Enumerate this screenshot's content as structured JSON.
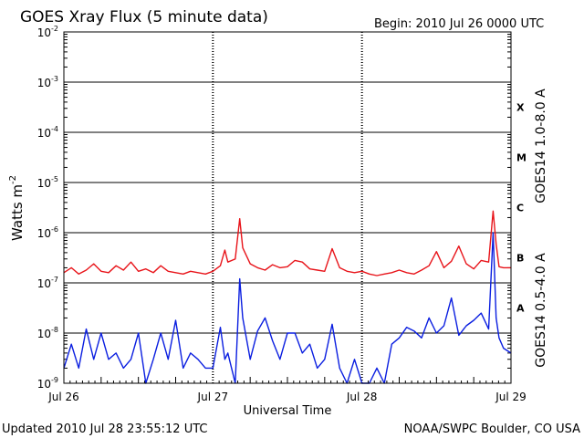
{
  "chart_data": {
    "type": "line",
    "title": "GOES Xray Flux (5 minute data)",
    "begin_label": "Begin:  2010 Jul 26 0000 UTC",
    "xlabel": "Universal Time",
    "ylabel_text": "Watts m",
    "ylabel_exp": "-2",
    "y_scale": "log",
    "ylim": [
      1e-09,
      0.01
    ],
    "grid": true,
    "y_ticks": [
      {
        "value": 0.01,
        "base": "10",
        "exp": "-2"
      },
      {
        "value": 0.001,
        "base": "10",
        "exp": "-3"
      },
      {
        "value": 0.0001,
        "base": "10",
        "exp": "-4"
      },
      {
        "value": 1e-05,
        "base": "10",
        "exp": "-5"
      },
      {
        "value": 1e-06,
        "base": "10",
        "exp": "-6"
      },
      {
        "value": 1e-07,
        "base": "10",
        "exp": "-7"
      },
      {
        "value": 1e-08,
        "base": "10",
        "exp": "-8"
      },
      {
        "value": 1e-09,
        "base": "10",
        "exp": "-9"
      }
    ],
    "x_ticks": [
      "Jul 26",
      "Jul 27",
      "Jul 28",
      "Jul 29"
    ],
    "flare_classes": [
      {
        "label": "X",
        "value": 0.000316
      },
      {
        "label": "M",
        "value": 3.16e-05
      },
      {
        "label": "C",
        "value": 3.16e-06
      },
      {
        "label": "B",
        "value": 3.16e-07
      },
      {
        "label": "A",
        "value": 3.16e-08
      }
    ],
    "series": [
      {
        "name": "GOES14 1.0-8.0 A",
        "color": "#e8141a",
        "x": [
          0,
          0.05,
          0.1,
          0.15,
          0.2,
          0.25,
          0.3,
          0.35,
          0.4,
          0.45,
          0.5,
          0.55,
          0.6,
          0.65,
          0.7,
          0.75,
          0.8,
          0.85,
          0.9,
          0.95,
          1.0,
          1.05,
          1.08,
          1.1,
          1.15,
          1.18,
          1.2,
          1.25,
          1.3,
          1.35,
          1.4,
          1.45,
          1.5,
          1.55,
          1.6,
          1.65,
          1.7,
          1.75,
          1.8,
          1.85,
          1.9,
          1.95,
          2.0,
          2.05,
          2.1,
          2.15,
          2.2,
          2.25,
          2.3,
          2.35,
          2.4,
          2.45,
          2.5,
          2.55,
          2.6,
          2.65,
          2.7,
          2.75,
          2.8,
          2.85,
          2.88,
          2.9,
          2.92,
          2.95,
          3.0
        ],
        "y": [
          1.6e-07,
          2e-07,
          1.5e-07,
          1.8e-07,
          2.4e-07,
          1.7e-07,
          1.6e-07,
          2.2e-07,
          1.8e-07,
          2.6e-07,
          1.7e-07,
          1.9e-07,
          1.6e-07,
          2.2e-07,
          1.7e-07,
          1.6e-07,
          1.5e-07,
          1.7e-07,
          1.6e-07,
          1.5e-07,
          1.7e-07,
          2.2e-07,
          4.5e-07,
          2.6e-07,
          3e-07,
          1.9e-06,
          5e-07,
          2.4e-07,
          2e-07,
          1.8e-07,
          2.3e-07,
          2e-07,
          2.1e-07,
          2.8e-07,
          2.6e-07,
          1.9e-07,
          1.8e-07,
          1.7e-07,
          4.8e-07,
          2e-07,
          1.7e-07,
          1.6e-07,
          1.7e-07,
          1.5e-07,
          1.4e-07,
          1.5e-07,
          1.6e-07,
          1.8e-07,
          1.6e-07,
          1.5e-07,
          1.8e-07,
          2.2e-07,
          4.2e-07,
          2e-07,
          2.7e-07,
          5.4e-07,
          2.4e-07,
          1.9e-07,
          2.8e-07,
          2.6e-07,
          2.7e-06,
          6e-07,
          2.1e-07,
          2e-07,
          2e-07
        ]
      },
      {
        "name": "GOES14 0.5-4.0 A",
        "color": "#0a1ee0",
        "x": [
          0,
          0.05,
          0.1,
          0.15,
          0.2,
          0.25,
          0.3,
          0.35,
          0.4,
          0.45,
          0.5,
          0.55,
          0.6,
          0.65,
          0.7,
          0.75,
          0.8,
          0.85,
          0.9,
          0.95,
          1.0,
          1.05,
          1.08,
          1.1,
          1.15,
          1.18,
          1.2,
          1.25,
          1.3,
          1.35,
          1.4,
          1.45,
          1.5,
          1.55,
          1.6,
          1.65,
          1.7,
          1.75,
          1.8,
          1.85,
          1.9,
          1.95,
          2.0,
          2.05,
          2.1,
          2.15,
          2.2,
          2.25,
          2.3,
          2.35,
          2.4,
          2.45,
          2.5,
          2.55,
          2.6,
          2.65,
          2.7,
          2.75,
          2.8,
          2.85,
          2.88,
          2.9,
          2.92,
          2.95,
          3.0
        ],
        "y": [
          2e-09,
          6e-09,
          2e-09,
          1.2e-08,
          3e-09,
          1e-08,
          3e-09,
          4e-09,
          2e-09,
          3e-09,
          1e-08,
          1e-09,
          3e-09,
          1e-08,
          3e-09,
          1.8e-08,
          2e-09,
          4e-09,
          3e-09,
          2e-09,
          2e-09,
          1.3e-08,
          3e-09,
          4e-09,
          1e-09,
          1.2e-07,
          2e-08,
          3e-09,
          1.1e-08,
          2e-08,
          7e-09,
          3e-09,
          1e-08,
          1e-08,
          4e-09,
          6e-09,
          2e-09,
          3e-09,
          1.5e-08,
          2e-09,
          1e-09,
          3e-09,
          1e-09,
          1e-09,
          2e-09,
          1e-09,
          6e-09,
          8e-09,
          1.3e-08,
          1.1e-08,
          8e-09,
          2e-08,
          1e-08,
          1.4e-08,
          5e-08,
          9e-09,
          1.4e-08,
          1.8e-08,
          2.5e-08,
          1.2e-08,
          1e-06,
          2e-08,
          8e-09,
          5e-09,
          4e-09
        ]
      }
    ]
  },
  "footer": {
    "updated": "Updated 2010 Jul 28 23:55:12 UTC",
    "source": "NOAA/SWPC Boulder, CO USA"
  }
}
